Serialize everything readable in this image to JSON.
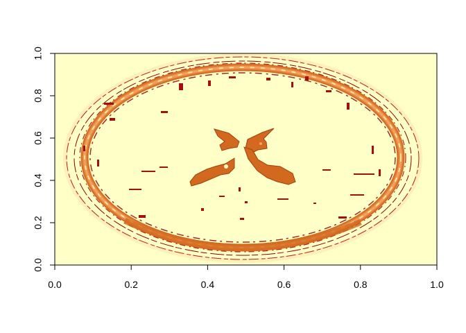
{
  "chart_data": {
    "type": "heatmap",
    "title": "",
    "xlabel": "",
    "ylabel": "",
    "xlim": [
      0,
      1
    ],
    "ylim": [
      0,
      1
    ],
    "x_ticks": [
      "0.0",
      "0.2",
      "0.4",
      "0.6",
      "0.8",
      "1.0"
    ],
    "y_ticks": [
      "0.0",
      "0.2",
      "0.4",
      "0.6",
      "0.8",
      "1.0"
    ],
    "palette": [
      "#7f0000",
      "#b22222",
      "#d2691e",
      "#f4a460",
      "#ffe4a0",
      "#ffffc8"
    ],
    "background_color": "#ffffc8",
    "grid": false,
    "legend": "none",
    "image": "axial brain MRI slice rendered with heat colors"
  }
}
